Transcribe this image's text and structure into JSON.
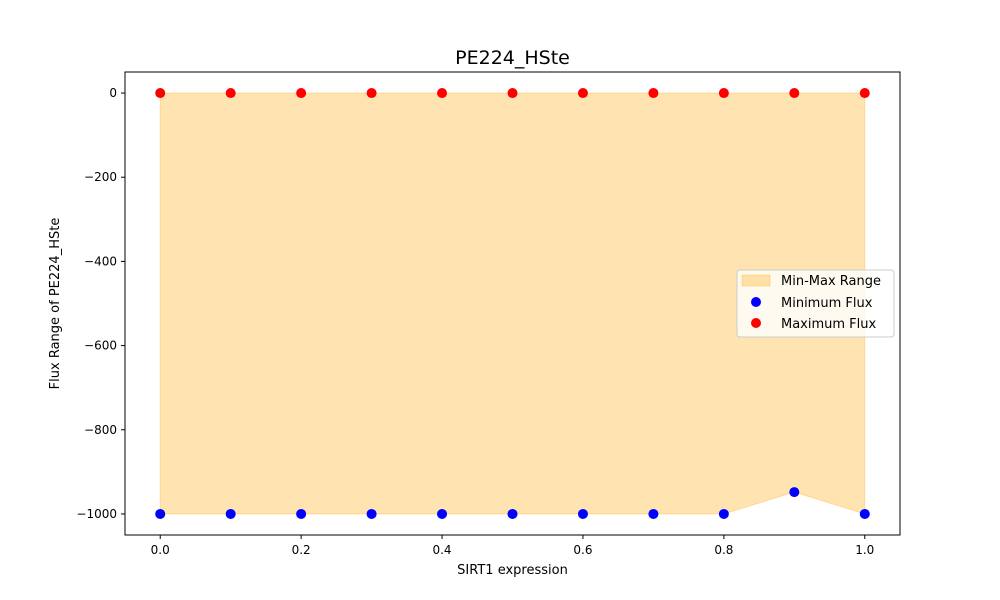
{
  "chart_data": {
    "type": "scatter",
    "title": "PE224_HSte",
    "xlabel": "SIRT1 expression",
    "ylabel": "Flux Range of PE224_HSte",
    "xlim": [
      -0.05,
      1.05
    ],
    "ylim": [
      -1050,
      50
    ],
    "x_ticks": [
      0.0,
      0.2,
      0.4,
      0.6,
      0.8,
      1.0
    ],
    "x_tick_labels": [
      "0.0",
      "0.2",
      "0.4",
      "0.6",
      "0.8",
      "1.0"
    ],
    "y_ticks": [
      0,
      -200,
      -400,
      -600,
      -800,
      -1000
    ],
    "y_tick_labels": [
      "0",
      "−200",
      "−400",
      "−600",
      "−800",
      "−1000"
    ],
    "x": [
      0.0,
      0.1,
      0.2,
      0.3,
      0.4,
      0.5,
      0.6,
      0.7,
      0.8,
      0.9,
      1.0
    ],
    "series": [
      {
        "name": "Minimum Flux",
        "color": "#0000ff",
        "values": [
          -1000,
          -1000,
          -1000,
          -1000,
          -1000,
          -1000,
          -1000,
          -1000,
          -1000,
          -948,
          -1000
        ]
      },
      {
        "name": "Maximum Flux",
        "color": "#ff0000",
        "values": [
          0,
          0,
          0,
          0,
          0,
          0,
          0,
          0,
          0,
          0,
          0
        ]
      }
    ],
    "fill": {
      "name": "Min-Max Range",
      "color": "#ffa500",
      "opacity": 0.3
    },
    "legend": {
      "placement": "center-right",
      "entries": [
        "Min-Max Range",
        "Minimum Flux",
        "Maximum Flux"
      ]
    },
    "grid": false
  }
}
